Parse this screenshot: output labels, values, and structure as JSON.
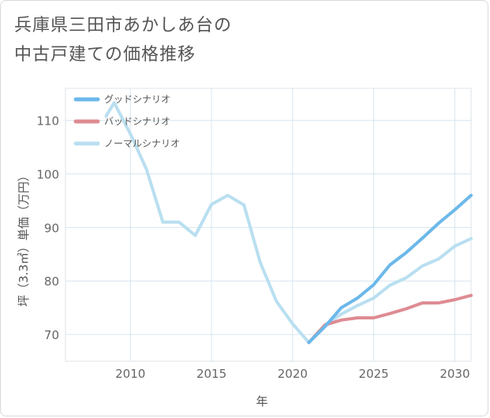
{
  "chart_data": {
    "type": "line",
    "title": "兵庫県三田市あかしあ台の\n中古戸建ての価格推移",
    "xlabel": "年",
    "ylabel": "坪（3.3㎡）単価（万円）",
    "xlim": [
      2006,
      2031
    ],
    "ylim": [
      65,
      116
    ],
    "x_ticks": [
      2010,
      2015,
      2020,
      2025,
      2030
    ],
    "y_ticks": [
      70,
      80,
      90,
      100,
      110
    ],
    "grid": true,
    "legend_position": "top-left",
    "series": [
      {
        "name": "グッドシナリオ",
        "color": "#6cb8ea",
        "x": [
          2021,
          2022,
          2023,
          2024,
          2025,
          2026,
          2027,
          2028,
          2029,
          2030,
          2031
        ],
        "y": [
          68.5,
          71.5,
          75.0,
          76.8,
          79.3,
          83.0,
          85.3,
          88.0,
          90.8,
          93.3,
          96.0
        ]
      },
      {
        "name": "バッドシナリオ",
        "color": "#de8b92",
        "x": [
          2021,
          2022,
          2023,
          2024,
          2025,
          2026,
          2027,
          2028,
          2029,
          2030,
          2031
        ],
        "y": [
          68.5,
          71.8,
          72.7,
          73.1,
          73.1,
          73.9,
          74.8,
          75.9,
          75.9,
          76.5,
          77.3
        ]
      },
      {
        "name": "ノーマルシナリオ",
        "color": "#b9dff0",
        "x": [
          2008.5,
          2009,
          2010,
          2011,
          2012,
          2013,
          2014,
          2015,
          2016,
          2017,
          2018,
          2019,
          2020,
          2021,
          2022,
          2023,
          2024,
          2025,
          2026,
          2027,
          2028,
          2029,
          2030,
          2031
        ],
        "y": [
          110.8,
          113.3,
          107.5,
          100.8,
          91.0,
          91.0,
          88.5,
          94.3,
          96.0,
          94.2,
          83.5,
          76.2,
          72.0,
          68.5,
          71.8,
          73.8,
          75.4,
          76.8,
          79.2,
          80.6,
          82.8,
          84.1,
          86.5,
          87.9
        ]
      }
    ]
  }
}
